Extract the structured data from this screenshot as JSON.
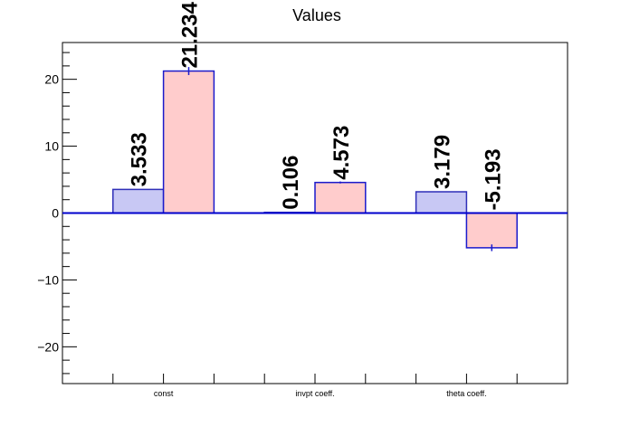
{
  "chart_data": {
    "type": "bar",
    "title": "Values",
    "categories": [
      "const",
      "invpt coeff.",
      "theta coeff."
    ],
    "series": [
      {
        "values": [
          3.533,
          0.106,
          3.179
        ],
        "labels": [
          "3.533",
          "0.106",
          "3.179"
        ],
        "color": "#c8c8f4",
        "edge": "#2f2fb8"
      },
      {
        "values": [
          21.234,
          4.573,
          -5.193
        ],
        "labels": [
          "21.234",
          "4.573",
          "-5.193"
        ],
        "color": "#ffcccc",
        "edge": "#1a1acc",
        "errors": [
          0.6,
          0.15,
          0.5
        ]
      }
    ],
    "ylim": [
      -25.5,
      25.5
    ],
    "yticks": [
      -20,
      -10,
      0,
      10,
      20
    ],
    "ytick_labels": [
      "−20",
      "−10",
      "0",
      "10",
      "20"
    ],
    "zero_line_color": "#0000cc",
    "grid": false,
    "legend": "none"
  }
}
